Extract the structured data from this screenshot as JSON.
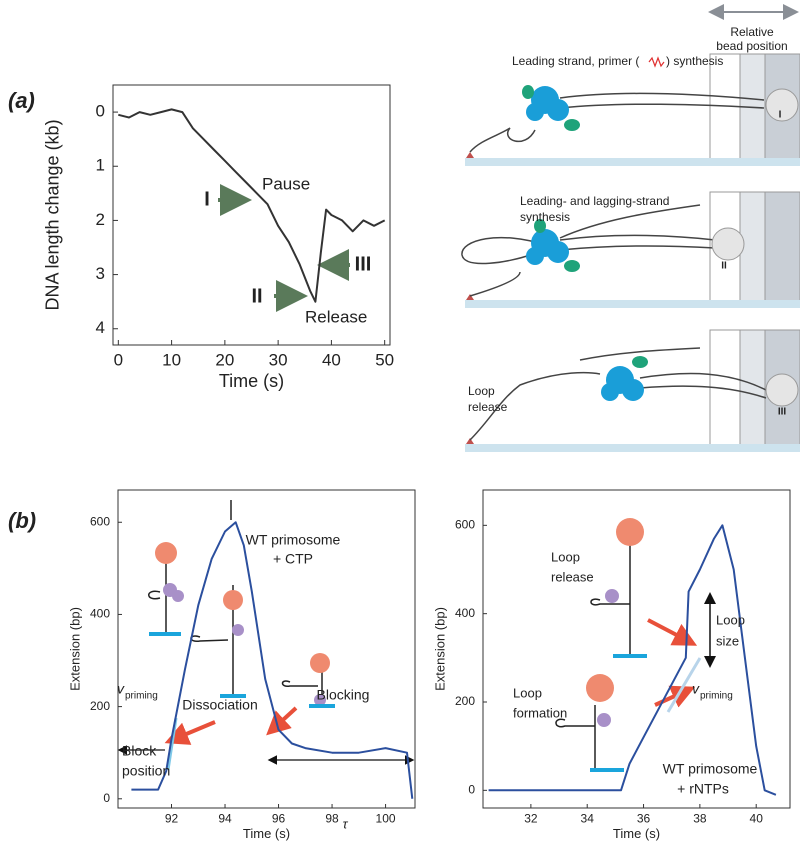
{
  "panel_labels": [
    "(a)",
    "(b)"
  ],
  "chart_data": [
    {
      "type": "line",
      "xlabel": "Time (s)",
      "ylabel": "DNA length change (kb)",
      "x": [
        0,
        2,
        4,
        6,
        8,
        10,
        12,
        14,
        16,
        18,
        20,
        22,
        24,
        26,
        28,
        30,
        32,
        34,
        36,
        37,
        38,
        39,
        40,
        42,
        44,
        46,
        48,
        50
      ],
      "series": [
        {
          "color": "#333333",
          "values": [
            0.05,
            0.1,
            0.0,
            0.05,
            0.0,
            -0.05,
            0.0,
            0.3,
            0.5,
            0.7,
            0.9,
            1.1,
            1.3,
            1.5,
            1.7,
            2.1,
            2.4,
            2.8,
            3.3,
            3.5,
            2.6,
            1.8,
            1.9,
            2.0,
            2.2,
            2.0,
            2.1,
            2.0
          ]
        }
      ],
      "xlim": [
        -1,
        51
      ],
      "ylim": [
        -0.5,
        4.3
      ],
      "y_reversed": true,
      "xticks": [
        0,
        10,
        20,
        30,
        40,
        50
      ],
      "yticks": [
        0,
        1,
        2,
        3,
        4
      ],
      "annotations": [
        "Pause",
        "Release",
        "I",
        "II",
        "III"
      ]
    },
    {
      "type": "line",
      "xlabel": "Time (s)",
      "ylabel": "Extension (bp)",
      "x": [
        90.5,
        91.5,
        91.8,
        92,
        92.5,
        93,
        93.5,
        94,
        94.4,
        94.7,
        95,
        95.5,
        96,
        96.5,
        97,
        98,
        99,
        100,
        100.8,
        101
      ],
      "series": [
        {
          "color": "#2b4f9e",
          "values": [
            20,
            20,
            60,
            130,
            280,
            420,
            520,
            580,
            600,
            550,
            450,
            260,
            150,
            120,
            110,
            100,
            100,
            110,
            100,
            0
          ]
        }
      ],
      "xlim": [
        90,
        101.1
      ],
      "ylim": [
        -20,
        670
      ],
      "xticks": [
        92,
        94,
        96,
        98,
        100
      ],
      "yticks": [
        0,
        200,
        400,
        600
      ],
      "annotations": [
        "WT primosome",
        "+ CTP",
        "Dissociation",
        "Blocking",
        "Block",
        "position",
        "v",
        "priming",
        "τ"
      ]
    },
    {
      "type": "line",
      "xlabel": "Time (s)",
      "ylabel": "Extension (bp)",
      "x": [
        30.5,
        32,
        34,
        35.2,
        35.5,
        36,
        36.5,
        37,
        37.5,
        37.6,
        38,
        38.5,
        38.8,
        39.2,
        39.6,
        40,
        40.3,
        40.7
      ],
      "series": [
        {
          "color": "#2b4f9e",
          "values": [
            0,
            0,
            0,
            0,
            60,
            120,
            180,
            240,
            300,
            450,
            500,
            570,
            600,
            500,
            300,
            100,
            0,
            -10
          ]
        }
      ],
      "xlim": [
        30.3,
        41.2
      ],
      "ylim": [
        -40,
        680
      ],
      "xticks": [
        32,
        34,
        36,
        38,
        40
      ],
      "yticks": [
        0,
        200,
        400,
        600
      ],
      "annotations": [
        "Loop",
        "release",
        "Loop",
        "formation",
        "Loop",
        "size",
        "v",
        "priming",
        "WT primosome",
        "+ rNTPs"
      ]
    }
  ],
  "diagram": {
    "bead_axis_label": [
      "Relative",
      "bead position"
    ],
    "steps": [
      {
        "caption": [
          "Leading strand, primer (",
          ") synthesis"
        ],
        "bead_label": "I"
      },
      {
        "caption": [
          "Leading- and lagging-strand",
          "synthesis"
        ],
        "bead_label": "II"
      },
      {
        "caption": [
          "Loop",
          "release"
        ],
        "bead_label": "III"
      }
    ]
  }
}
